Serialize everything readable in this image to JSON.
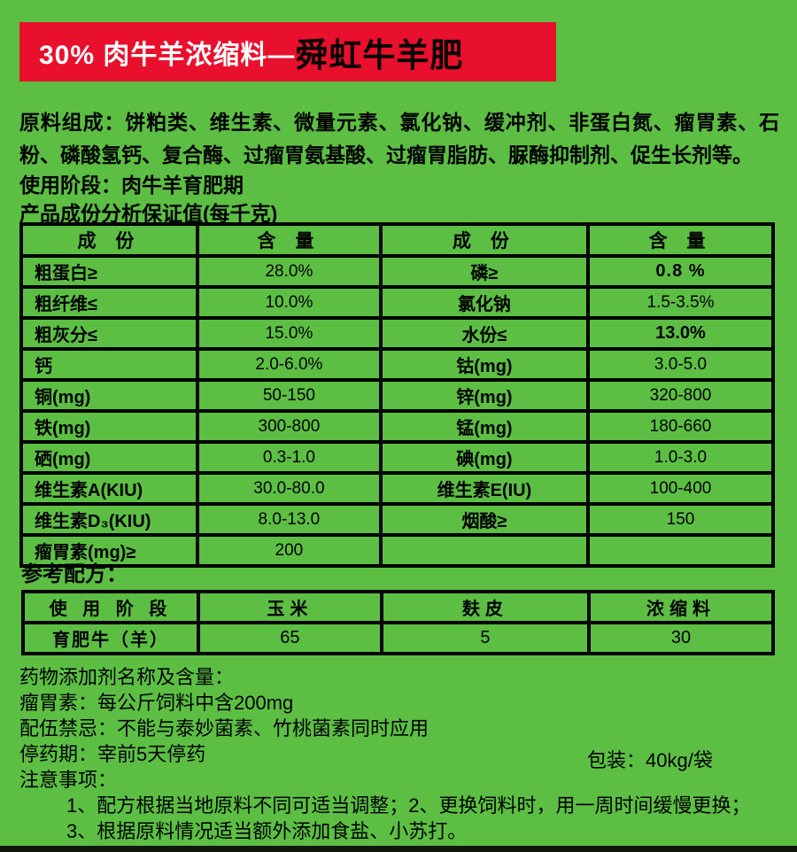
{
  "colors": {
    "background": "#5cbf43",
    "banner": "#e8102c",
    "table_border": "#000000",
    "banner_text_primary": "#ffffff",
    "banner_text_brand": "#000000",
    "bottom_strip": "#0d1608"
  },
  "banner": {
    "prefix": "30% 肉牛羊浓缩料—",
    "brand": "舜虹牛羊肥"
  },
  "intro": {
    "composition_label": "原料组成：",
    "composition_text": "饼粕类、维生素、微量元素、氯化钠、缓冲剂、非蛋白氮、瘤胃素、石粉、磷酸氢钙、复合酶、过瘤胃氨基酸、过瘤胃脂肪、脲酶抑制剂、促生长剂等。",
    "stage_label": "使用阶段：",
    "stage_text": "肉牛羊育肥期",
    "analysis_title": "产品成份分析保证值(每千克)"
  },
  "analysis_table": {
    "headers": [
      "成 份",
      "含 量",
      "成 份",
      "含 量"
    ],
    "rows": [
      [
        "粗蛋白≥",
        "28.0%",
        "磷≥",
        "0.8 %"
      ],
      [
        "粗纤维≤",
        "10.0%",
        "氯化钠",
        "1.5-3.5%"
      ],
      [
        "粗灰分≤",
        "15.0%",
        "水份≤",
        "13.0%"
      ],
      [
        "钙",
        "2.0-6.0%",
        "钴(mg)",
        "3.0-5.0"
      ],
      [
        "铜(mg)",
        "50-150",
        "锌(mg)",
        "320-800"
      ],
      [
        "铁(mg)",
        "300-800",
        "锰(mg)",
        "180-660"
      ],
      [
        "硒(mg)",
        "0.3-1.0",
        "碘(mg)",
        "1.0-3.0"
      ],
      [
        "维生素A(KIU)",
        "30.0-80.0",
        "维生素E(IU)",
        "100-400"
      ],
      [
        "维生素D₃(KIU)",
        "8.0-13.0",
        "烟酸≥",
        "150"
      ],
      [
        "瘤胃素(mg)≥",
        "200",
        "",
        ""
      ]
    ]
  },
  "formula": {
    "title": "参考配方：",
    "headers": [
      "使 用 阶 段",
      "玉米",
      "麸皮",
      "浓缩料"
    ],
    "rows": [
      [
        "育肥牛（羊）",
        "65",
        "5",
        "30"
      ]
    ]
  },
  "footer": {
    "line_additive_title": "药物添加剂名称及含量：",
    "line_monensin": "瘤胃素：每公斤饲料中含200mg",
    "line_incompatibility": "配伍禁忌：不能与泰妙菌素、竹桃菌素同时应用",
    "line_withdrawal": "停药期：宰前5天停药",
    "package": "包装：40kg/袋",
    "line_precautions_title": "注意事项：",
    "note1": "1、配方根据当地原料不同可适当调整；2、更换饲料时，用一周时间缓慢更换；",
    "note2": "3、根据原料情况适当额外添加食盐、小苏打。"
  }
}
